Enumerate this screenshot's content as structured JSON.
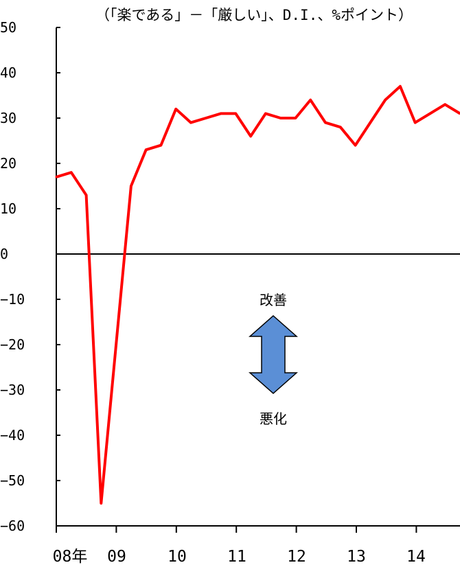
{
  "chart_data": {
    "type": "line",
    "unit_label": "（「楽である」－「厳しい」、D.I.、%ポイント）",
    "ylim": [
      -60,
      50
    ],
    "y_ticks": [
      "50",
      "40",
      "30",
      "20",
      "10",
      "0",
      "−10",
      "−20",
      "−30",
      "−40",
      "−50",
      "−60"
    ],
    "x_tick_labels": [
      "08年",
      "09",
      "10",
      "11",
      "12",
      "13",
      "14"
    ],
    "grid": false,
    "series": [
      {
        "color": "#ff0000",
        "values": [
          17,
          18,
          13,
          -55,
          -20,
          15,
          23,
          24,
          32,
          29,
          30,
          31,
          31,
          26,
          31,
          30,
          30,
          34,
          29,
          28,
          24,
          29,
          34,
          37,
          29,
          31,
          33,
          31
        ]
      }
    ],
    "annotations": {
      "improve_label": "改善",
      "worsen_label": "悪化",
      "arrow_color": "#5b8fd6"
    }
  }
}
